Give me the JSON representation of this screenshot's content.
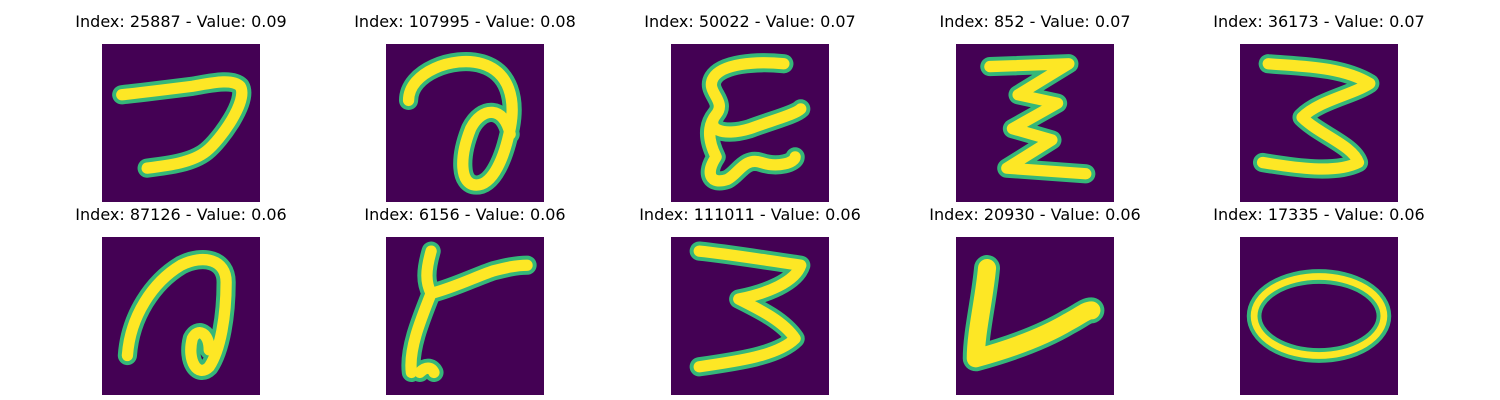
{
  "panels": [
    {
      "title": "Index: 25887 - Value: 0.09",
      "image": "digit-seven"
    },
    {
      "title": "Index: 107995 - Value: 0.08",
      "image": "digit-a-loop"
    },
    {
      "title": "Index: 50022 - Value: 0.07",
      "image": "digit-zigzag-e"
    },
    {
      "title": "Index: 852 - Value: 0.07",
      "image": "digit-zigzag-z"
    },
    {
      "title": "Index: 36173 - Value: 0.07",
      "image": "digit-three"
    },
    {
      "title": "Index: 87126 - Value: 0.06",
      "image": "digit-a-loop"
    },
    {
      "title": "Index: 6156 - Value: 0.06",
      "image": "digit-y-like"
    },
    {
      "title": "Index: 111011 - Value: 0.06",
      "image": "digit-three"
    },
    {
      "title": "Index: 20930 - Value: 0.06",
      "image": "digit-l"
    },
    {
      "title": "Index: 17335 - Value: 0.06",
      "image": "digit-zero"
    }
  ],
  "colors": {
    "background": "#440154",
    "stroke_core": "#fde725",
    "stroke_edge": "#35b779"
  }
}
